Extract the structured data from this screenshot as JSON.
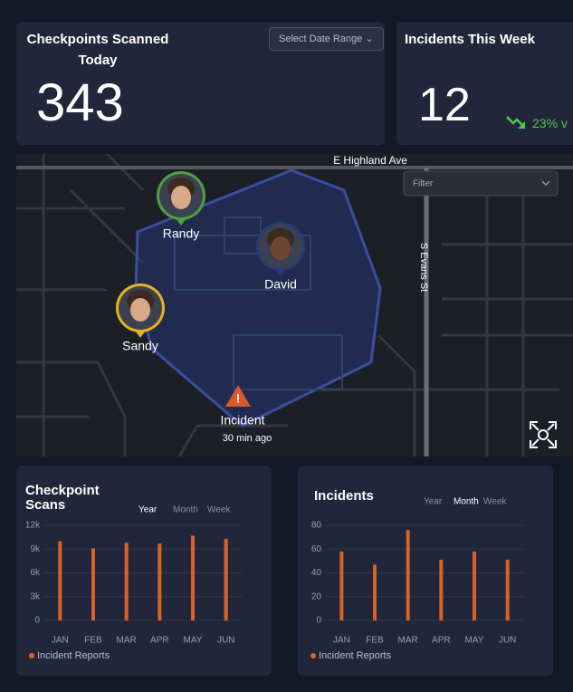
{
  "summary_cards": [
    {
      "title": "Checkpoints Scanned Today",
      "value": 343,
      "control": "Select Date Range"
    },
    {
      "title": "Incidents This Week",
      "value": 12,
      "change": "23% v",
      "change_color": "#4cc94c"
    }
  ],
  "map": {
    "street_labels": [
      "E Highland Ave",
      "S Evans St"
    ],
    "filter": "Filter",
    "guards": [
      {
        "name": "Randy",
        "ring_color": "#4f9e45"
      },
      {
        "name": "David",
        "ring_color": "#2a3a74"
      },
      {
        "name": "Sandy",
        "ring_color": "#e3b31c"
      }
    ],
    "incident": {
      "label": "Incident",
      "time": "30 min ago"
    }
  },
  "chart_data": [
    {
      "type": "bar",
      "title": "Checkpoint Scans",
      "tabs": [
        "Year",
        "Month",
        "Week"
      ],
      "active_tab": 0,
      "categories": [
        "JAN",
        "FEB",
        "MAR",
        "APR",
        "MAY",
        "JUN"
      ],
      "series": [
        {
          "name": "Incident Reports",
          "color": "#d9622b",
          "values": [
            10000,
            9100,
            9800,
            9700,
            10700,
            10300
          ]
        }
      ],
      "ylim": [
        0,
        12000
      ],
      "yticks": [
        0,
        {
          "value": 3000,
          "label": "3k"
        },
        {
          "value": 6000,
          "label": "6k"
        },
        {
          "value": 9000,
          "label": "9k"
        },
        {
          "value": 12000,
          "label": "12k"
        }
      ],
      "grid": true
    },
    {
      "type": "bar",
      "title": "Incidents",
      "tabs": [
        "Year",
        "Month",
        "Week"
      ],
      "active_tab": 1,
      "categories": [
        "JAN",
        "FEB",
        "MAR",
        "APR",
        "MAY",
        "JUN"
      ],
      "series": [
        {
          "name": "Incident Reports",
          "color": "#d9622b",
          "values": [
            58,
            47,
            76,
            51,
            58,
            51
          ]
        }
      ],
      "ylim": [
        0,
        80
      ],
      "yticks": [
        0,
        20,
        40,
        60,
        80
      ],
      "grid": true
    }
  ]
}
